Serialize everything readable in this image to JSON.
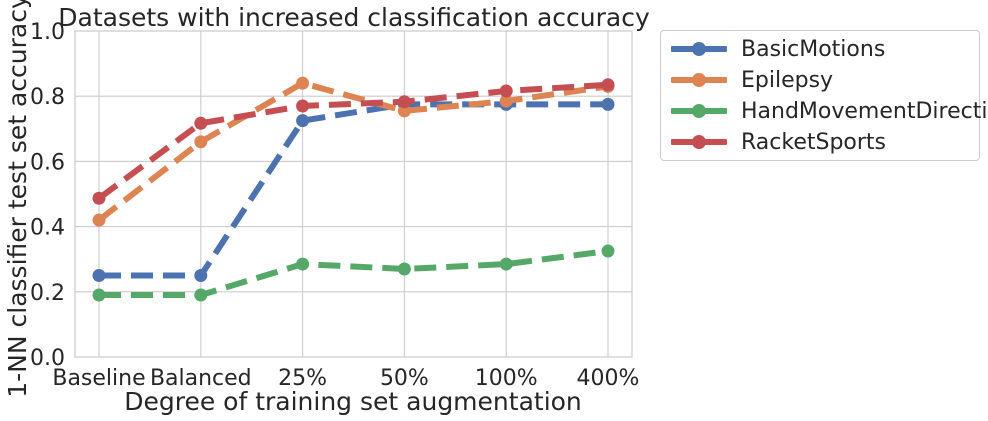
{
  "chart_data": {
    "type": "line",
    "title": "Datasets with increased classification accuracy",
    "xlabel": "Degree of training set augmentation",
    "ylabel": "1-NN classifier test set accuracy",
    "categories": [
      "Baseline",
      "Balanced",
      "25%",
      "50%",
      "100%",
      "400%"
    ],
    "ylim": [
      0.0,
      1.0
    ],
    "yticks": [
      "0.0",
      "0.2",
      "0.4",
      "0.6",
      "0.8",
      "1.0"
    ],
    "grid": true,
    "line_style": "dashed",
    "legend_position": "outside-right-top",
    "series": [
      {
        "name": "BasicMotions",
        "color": "#4c72b0",
        "values": [
          0.25,
          0.25,
          0.725,
          0.775,
          0.775,
          0.775
        ]
      },
      {
        "name": "Epilepsy",
        "color": "#dd8452",
        "values": [
          0.42,
          0.66,
          0.84,
          0.755,
          0.785,
          0.83
        ]
      },
      {
        "name": "HandMovementDirection",
        "color": "#55a868",
        "values": [
          0.19,
          0.19,
          0.285,
          0.27,
          0.285,
          0.325
        ]
      },
      {
        "name": "RacketSports",
        "color": "#c44e52",
        "values": [
          0.487,
          0.717,
          0.77,
          0.783,
          0.816,
          0.835
        ]
      }
    ]
  }
}
